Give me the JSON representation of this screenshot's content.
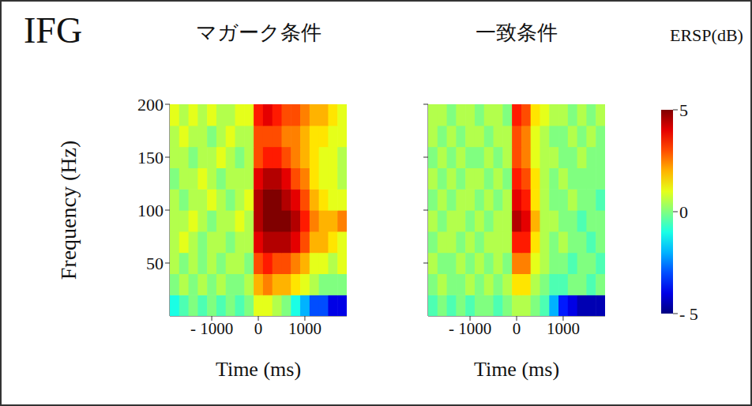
{
  "title": "IFG",
  "colorbar": {
    "label": "ERSP(dB)",
    "range": [
      -5,
      5
    ],
    "ticks": [
      5,
      0,
      {
        "value": -5,
        "label": "- 5"
      }
    ]
  },
  "chart_data": [
    {
      "type": "heatmap",
      "title": "マガーク条件",
      "x_label": "Time (ms)",
      "y_label": "Frequency (Hz)",
      "xlim": [
        -1900,
        1900
      ],
      "ylim": [
        0,
        200
      ],
      "xticks": [
        {
          "value": -1000,
          "label": "- 1000"
        },
        0,
        1000
      ],
      "yticks": [
        50,
        100,
        150,
        200
      ],
      "vline": 0,
      "x": [
        -1800,
        -1600,
        -1400,
        -1200,
        -1000,
        -800,
        -600,
        -400,
        -200,
        0,
        200,
        400,
        600,
        800,
        1000,
        1200,
        1400,
        1600,
        1800
      ],
      "y": [
        10,
        30,
        50,
        70,
        90,
        110,
        130,
        150,
        170,
        190
      ],
      "z": [
        [
          -1,
          -0.5,
          0,
          -0.5,
          0,
          -0.5,
          0,
          -0.5,
          0,
          1,
          1,
          0.5,
          0,
          -1,
          -2,
          -3,
          -3,
          -4,
          -4
        ],
        [
          0,
          0.5,
          0,
          0.5,
          0,
          0.5,
          0,
          0,
          0.5,
          2,
          2.5,
          2,
          2,
          1.5,
          1,
          0.5,
          0,
          0,
          0
        ],
        [
          0.5,
          0,
          0.5,
          0,
          0.5,
          0,
          0.5,
          0.5,
          0,
          3,
          3.5,
          3,
          3,
          2.5,
          2,
          1,
          1,
          0.5,
          1
        ],
        [
          0.5,
          1,
          0.5,
          0,
          0.5,
          0.5,
          0,
          0.5,
          0.5,
          4,
          4.5,
          4.5,
          4.5,
          4,
          3,
          2,
          2,
          1.5,
          1
        ],
        [
          0.5,
          0.5,
          1,
          0.5,
          0,
          0.5,
          0.5,
          1,
          0.5,
          4.5,
          5,
          5,
          5,
          4.5,
          3.5,
          2.5,
          2,
          2,
          2.5
        ],
        [
          0.5,
          0,
          0.5,
          0.5,
          1,
          0.5,
          0,
          0.5,
          1,
          4.5,
          5,
          5,
          4.5,
          4,
          3,
          2,
          1.5,
          1,
          1
        ],
        [
          0,
          0.5,
          0.5,
          1,
          0.5,
          0,
          0.5,
          0.5,
          0.5,
          4,
          4.5,
          4.5,
          4,
          3,
          2.5,
          1.5,
          1,
          1,
          0.5
        ],
        [
          0.5,
          0.5,
          0,
          0.5,
          0.5,
          1,
          0.5,
          0,
          0.5,
          3,
          3.5,
          3.5,
          3,
          2.5,
          2,
          1.5,
          1,
          1,
          0.5
        ],
        [
          0.5,
          1,
          0.5,
          0.5,
          0,
          0.5,
          1,
          0.5,
          0.5,
          3,
          3,
          3,
          2.5,
          2.5,
          2,
          1.5,
          1.5,
          1,
          1
        ],
        [
          1,
          0.5,
          1,
          0.5,
          1,
          0.5,
          0.5,
          1,
          1,
          3.5,
          4,
          3.5,
          3,
          3,
          2.5,
          2,
          2,
          1.5,
          1
        ]
      ]
    },
    {
      "type": "heatmap",
      "title": "一致条件",
      "x_label": "Time (ms)",
      "tick_labels": "x",
      "xlim": [
        -1900,
        1900
      ],
      "ylim": [
        0,
        200
      ],
      "xticks": [
        {
          "value": -1000,
          "label": "- 1000"
        },
        0,
        1000
      ],
      "yticks": [
        50,
        100,
        150,
        200
      ],
      "vline": 0,
      "x": [
        -1800,
        -1600,
        -1400,
        -1200,
        -1000,
        -800,
        -600,
        -400,
        -200,
        0,
        200,
        400,
        600,
        800,
        1000,
        1200,
        1400,
        1600,
        1800
      ],
      "y": [
        10,
        30,
        50,
        70,
        90,
        110,
        130,
        150,
        170,
        190
      ],
      "z": [
        [
          -0.5,
          0,
          -0.5,
          0,
          -0.5,
          0,
          0,
          -0.5,
          0,
          0.5,
          0.5,
          0,
          -0.5,
          -2,
          -3.5,
          -4,
          -4.5,
          -4.5,
          -4.5
        ],
        [
          0,
          0.5,
          0,
          0,
          0.5,
          0,
          0.5,
          0,
          0.5,
          1.5,
          1.5,
          0.5,
          0,
          -0.5,
          -0.5,
          0,
          0,
          -0.5,
          0
        ],
        [
          0.5,
          0,
          0,
          0.5,
          0,
          0.5,
          0,
          0.5,
          0,
          2.5,
          2.5,
          1,
          0.5,
          0,
          0,
          -0.5,
          0,
          0,
          -0.5
        ],
        [
          0,
          0.5,
          0.5,
          0,
          0.5,
          0,
          0.5,
          0.5,
          0.5,
          3.5,
          3.5,
          1.5,
          0.5,
          0,
          0.5,
          0,
          0,
          -0.5,
          0
        ],
        [
          0.5,
          0,
          0.5,
          0.5,
          0,
          0.5,
          0,
          0.5,
          0.5,
          4.5,
          4,
          2,
          0.5,
          0.5,
          0,
          0,
          -0.5,
          0,
          0
        ],
        [
          0,
          0.5,
          0,
          0.5,
          0.5,
          0,
          0.5,
          0,
          0.5,
          4,
          3.5,
          1.5,
          0.5,
          0,
          0,
          0.5,
          0,
          0,
          -0.5
        ],
        [
          0.5,
          0,
          0.5,
          0,
          0.5,
          0.5,
          0,
          0.5,
          0,
          3.5,
          3,
          1.5,
          0.5,
          0,
          0.5,
          0,
          0,
          0,
          0
        ],
        [
          0,
          0.5,
          0,
          0.5,
          0,
          0,
          0.5,
          0,
          0.5,
          3,
          2.5,
          1,
          0.5,
          0.5,
          0,
          0,
          0.5,
          0,
          0
        ],
        [
          0.5,
          0,
          0.5,
          0,
          0.5,
          0.5,
          0,
          0.5,
          0.5,
          3,
          2.5,
          1,
          0.5,
          0,
          0,
          0.5,
          0,
          0.5,
          0
        ],
        [
          0.5,
          0.5,
          0,
          0.5,
          0.5,
          0,
          0.5,
          0.5,
          0,
          3.5,
          3,
          1.5,
          1,
          0.5,
          0.5,
          0,
          0.5,
          0,
          0.5
        ]
      ]
    }
  ]
}
